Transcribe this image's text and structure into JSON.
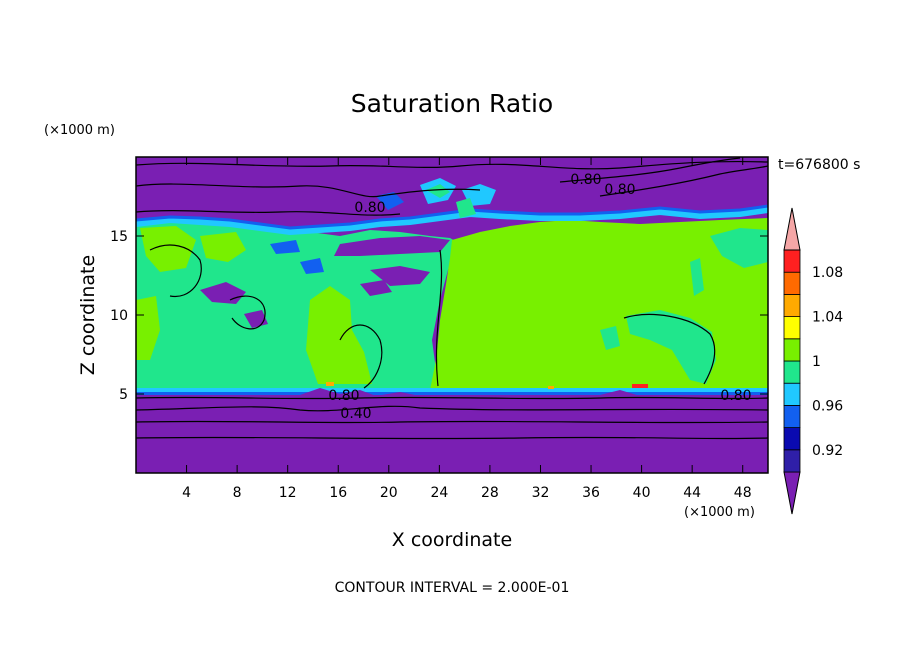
{
  "chart_data": {
    "type": "heatmap",
    "title": "Saturation Ratio",
    "xlabel": "X coordinate",
    "ylabel": "Z coordinate",
    "x_unit": "(×1000 m)",
    "y_unit": "(×1000 m)",
    "time_label": "t=676800 s",
    "footer": "CONTOUR INTERVAL = 2.000E-01",
    "xlim": [
      0,
      50
    ],
    "ylim": [
      0,
      20
    ],
    "x_ticks": [
      4,
      8,
      12,
      16,
      20,
      24,
      28,
      32,
      36,
      40,
      44,
      48
    ],
    "y_ticks": [
      5,
      10,
      15
    ],
    "colorbar": {
      "levels": [
        0.9,
        0.92,
        0.94,
        0.96,
        0.98,
        1.0,
        1.02,
        1.04,
        1.06,
        1.08,
        1.1
      ],
      "tick_labels": [
        "0.92",
        "0.96",
        "1",
        "1.04",
        "1.08"
      ],
      "colors": [
        "#7a1fb3",
        "#2f1fa8",
        "#0a0ab0",
        "#1260f0",
        "#20c8ff",
        "#20e68c",
        "#78f000",
        "#ffff00",
        "#ffaa00",
        "#ff6a00",
        "#ff2020",
        "#f5a6a6"
      ]
    },
    "regions": [
      {
        "name": "upper dry layer",
        "z_range": [
          16.5,
          20
        ],
        "value": "< 0.90"
      },
      {
        "name": "supersaturated cloud layer (west)",
        "x_range": [
          0,
          24
        ],
        "z_range": [
          5.2,
          15.5
        ],
        "value": "0.98–1.00"
      },
      {
        "name": "saturated cloud layer (east)",
        "x_range": [
          24,
          50
        ],
        "z_range": [
          5.2,
          15.5
        ],
        "value": "1.00–1.02"
      },
      {
        "name": "lower dry layer",
        "z_range": [
          0,
          5
        ],
        "value": "< 0.90"
      }
    ],
    "contour_labels": [
      "0.80",
      "0.80",
      "0.80",
      "0.80",
      "0.80",
      "0.40"
    ]
  }
}
